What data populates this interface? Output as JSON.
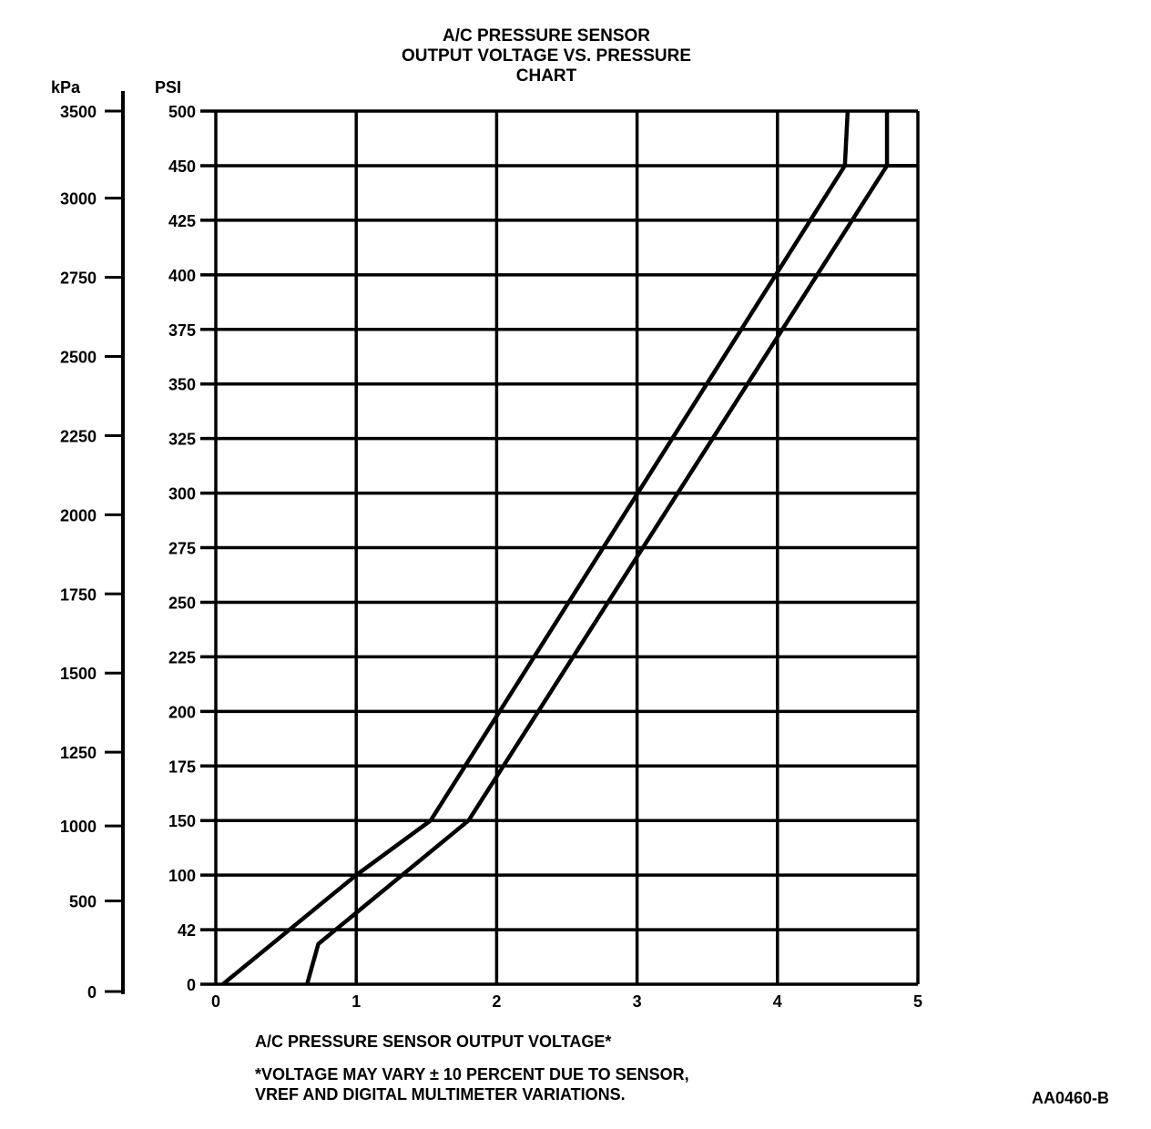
{
  "chart_data": {
    "type": "line",
    "title": [
      "A/C PRESSURE SENSOR",
      "OUTPUT VOLTAGE VS. PRESSURE",
      "CHART"
    ],
    "xlabel": "A/C PRESSURE SENSOR OUTPUT VOLTAGE*",
    "ylabel": "PSI",
    "ylabel_secondary": "kPa",
    "xlim": [
      0,
      5
    ],
    "ylim": [
      0,
      500
    ],
    "x_ticks": [
      "0",
      "1",
      "2",
      "3",
      "4",
      "5"
    ],
    "y_ticks": [
      0,
      42,
      100,
      150,
      175,
      200,
      225,
      250,
      275,
      300,
      325,
      350,
      375,
      400,
      425,
      450,
      500
    ],
    "y_ticks_secondary": [
      0,
      500,
      1000,
      1250,
      1500,
      1750,
      2000,
      2250,
      2500,
      2750,
      3000,
      3500
    ],
    "grid": true,
    "series": [
      {
        "values_x": [
          0.05,
          1.0,
          1.53,
          4.48,
          4.5
        ],
        "values_y": [
          0,
          100,
          150,
          450,
          500
        ]
      },
      {
        "values_x": [
          0.65,
          0.73,
          1.8,
          4.78,
          4.78
        ],
        "values_y": [
          0,
          31,
          150,
          450,
          500
        ]
      }
    ],
    "annotations": {
      "footnote_line1": "*VOLTAGE MAY VARY ± 10 PERCENT DUE TO SENSOR,",
      "footnote_line2": "VREF AND DIGITAL MULTIMETER VARIATIONS.",
      "figure_id": "AA0460-B"
    }
  }
}
